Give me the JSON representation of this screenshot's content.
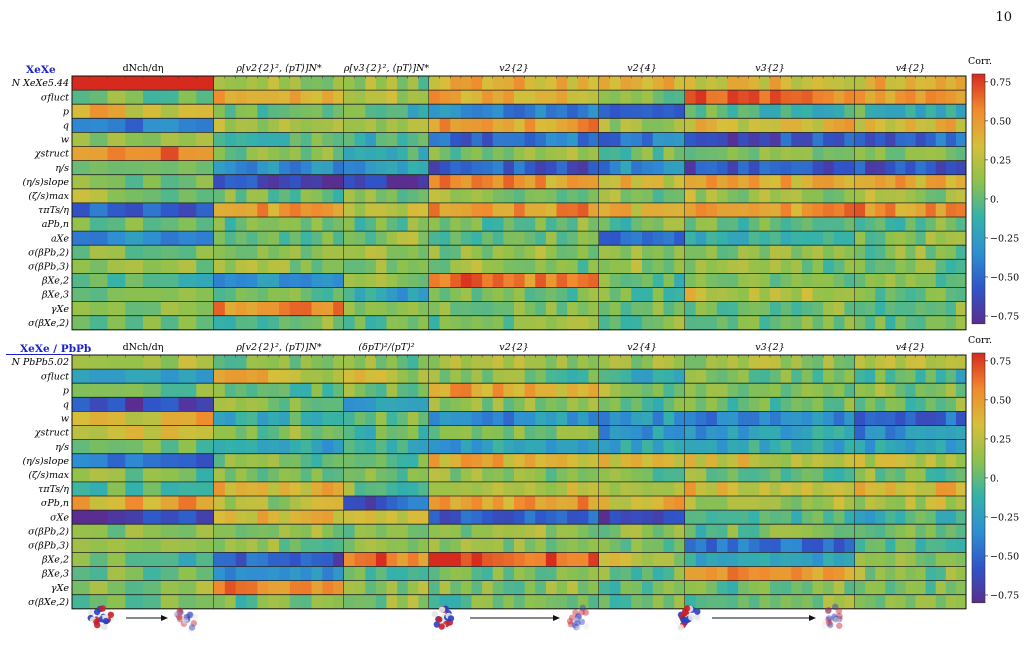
{
  "page_number": "10",
  "colorbar": {
    "label": "Corr.",
    "ticks": [
      0.75,
      0.5,
      0.25,
      0,
      -0.25,
      -0.5,
      -0.75
    ],
    "tick_labels": [
      "0.75",
      "0.50",
      "0.25",
      "0.",
      "−0.25",
      "−0.50",
      "−0.75"
    ],
    "stops": [
      "#5a2d91",
      "#2f55c8",
      "#2f8fd2",
      "#35b2a9",
      "#8fc14d",
      "#d6bf3a",
      "#f08a2e",
      "#d62a1f"
    ]
  },
  "chart_data": [
    {
      "type": "heatmap",
      "panel_title": "XeXe",
      "value_range": [
        -0.75,
        0.75
      ],
      "rows": [
        "N XeXe5.44",
        "σfluct",
        "p",
        "q",
        "w",
        "χstruct",
        "η/s",
        "(η/s)slope",
        "(ζ/s)max",
        "τπTs/η",
        "aPb,n",
        "aXe",
        "σ(βPb,2)",
        "σ(βPb,3)",
        "βXe,2",
        "βXe,3",
        "γXe",
        "σ(βXe,2)"
      ],
      "columns": [
        "dNch/dη",
        "ρ[v2{2}², ⟨pT⟩]N*",
        "ρ[v3{2}², ⟨pT⟩]N*",
        "v2{2}",
        "v2{4}",
        "v3{2}",
        "v4{2}"
      ],
      "column_bins": [
        8,
        12,
        8,
        16,
        8,
        16,
        11
      ],
      "row_levels": [
        [
          0.9,
          0.1,
          0.1,
          0.35,
          0.35,
          0.3,
          0.35
        ],
        [
          0.05,
          0.45,
          0.2,
          0.4,
          0.1,
          0.6,
          0.45
        ],
        [
          0.35,
          0.0,
          -0.05,
          -0.35,
          -0.55,
          -0.05,
          -0.1
        ],
        [
          -0.35,
          0.25,
          0.15,
          0.5,
          0.15,
          0.35,
          0.35
        ],
        [
          0.2,
          -0.05,
          -0.05,
          -0.45,
          -0.4,
          -0.55,
          -0.45
        ],
        [
          0.5,
          0.05,
          -0.1,
          0.1,
          0.0,
          0.05,
          0.05
        ],
        [
          0.1,
          -0.35,
          -0.25,
          -0.55,
          -0.35,
          -0.55,
          -0.55
        ],
        [
          0.05,
          -0.65,
          -0.7,
          0.45,
          0.3,
          0.4,
          0.4
        ],
        [
          0.1,
          0.05,
          0.1,
          0.15,
          0.1,
          0.15,
          0.15
        ],
        [
          -0.45,
          0.5,
          0.25,
          0.5,
          0.4,
          0.5,
          0.5
        ],
        [
          0.05,
          0.05,
          0.05,
          0.05,
          0.05,
          0.05,
          0.05
        ],
        [
          -0.35,
          0.0,
          0.1,
          0.0,
          -0.45,
          -0.05,
          0.05
        ],
        [
          0.05,
          0.05,
          0.1,
          0.1,
          0.05,
          0.05,
          0.05
        ],
        [
          0.1,
          0.1,
          0.1,
          0.1,
          0.1,
          0.05,
          0.05
        ],
        [
          0.0,
          -0.3,
          0.1,
          0.55,
          0.0,
          0.05,
          0.05
        ],
        [
          0.05,
          0.05,
          -0.2,
          0.05,
          0.05,
          0.25,
          0.05
        ],
        [
          0.1,
          0.55,
          0.1,
          0.1,
          0.05,
          0.05,
          0.05
        ],
        [
          0.05,
          0.05,
          0.05,
          0.05,
          0.05,
          0.05,
          0.05
        ]
      ]
    },
    {
      "type": "heatmap",
      "panel_title": "XeXe / PbPb",
      "value_range": [
        -0.75,
        0.75
      ],
      "rows": [
        "N PbPb5.02",
        "σfluct",
        "p",
        "q",
        "w",
        "χstruct",
        "η/s",
        "(η/s)slope",
        "(ζ/s)max",
        "τπTs/η",
        "σPb,n",
        "σXe",
        "σ(βPb,2)",
        "σ(βPb,3)",
        "βXe,2",
        "βXe,3",
        "γXe",
        "σ(βXe,2)"
      ],
      "columns": [
        "dNch/dη",
        "ρ[v2{2}², ⟨pT⟩]N*",
        "(δpT)²/⟨pT⟩²",
        "v2{2}",
        "v2{4}",
        "v3{2}",
        "v4{2}"
      ],
      "column_bins": [
        8,
        12,
        8,
        16,
        8,
        16,
        11
      ],
      "row_levels": [
        [
          0.15,
          0.05,
          0.05,
          0.15,
          0.1,
          0.15,
          0.25
        ],
        [
          -0.25,
          0.3,
          0.2,
          0.05,
          -0.15,
          0.05,
          -0.05
        ],
        [
          0.1,
          0.05,
          0.1,
          0.45,
          0.1,
          0.1,
          0.1
        ],
        [
          -0.6,
          0.1,
          -0.2,
          0.15,
          0.0,
          0.05,
          0.05
        ],
        [
          0.35,
          -0.1,
          0.05,
          -0.3,
          -0.3,
          -0.35,
          -0.5
        ],
        [
          0.3,
          0.05,
          -0.05,
          0.05,
          -0.3,
          -0.25,
          -0.3
        ],
        [
          0.0,
          -0.2,
          -0.1,
          -0.25,
          -0.2,
          -0.2,
          -0.25
        ],
        [
          -0.45,
          0.05,
          0.05,
          0.35,
          0.3,
          0.25,
          0.2
        ],
        [
          0.05,
          0.05,
          0.05,
          0.1,
          0.05,
          0.05,
          0.05
        ],
        [
          0.0,
          0.4,
          0.05,
          0.25,
          0.15,
          0.35,
          0.4
        ],
        [
          0.45,
          0.2,
          -0.5,
          0.45,
          0.35,
          0.15,
          0.2
        ],
        [
          -0.65,
          0.35,
          0.3,
          -0.5,
          -0.6,
          -0.1,
          -0.1
        ],
        [
          0.05,
          0.1,
          0.05,
          0.1,
          0.05,
          0.0,
          0.0
        ],
        [
          0.05,
          0.05,
          0.05,
          0.05,
          0.05,
          -0.45,
          -0.05
        ],
        [
          0.0,
          -0.5,
          0.6,
          0.7,
          0.2,
          -0.2,
          0.05
        ],
        [
          0.05,
          -0.3,
          -0.05,
          0.05,
          0.05,
          0.5,
          0.1
        ],
        [
          0.1,
          0.55,
          0.1,
          0.1,
          0.05,
          0.05,
          0.05
        ],
        [
          0.05,
          0.05,
          0.1,
          0.05,
          0.05,
          0.05,
          0.05
        ]
      ]
    }
  ]
}
